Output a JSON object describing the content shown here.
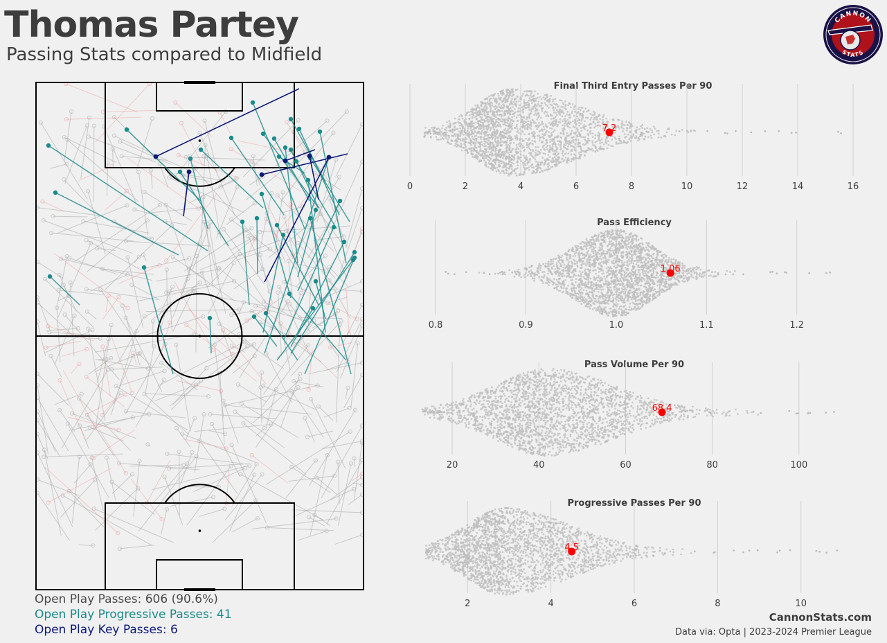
{
  "header": {
    "title": "Thomas Partey",
    "subtitle": "Passing Stats compared to Midfield"
  },
  "logo": {
    "top_text": "CANNON",
    "bottom_text": "STATS",
    "colors": {
      "ring": "#1a1147",
      "inner": "#b0121b",
      "cannon": "#e8e8e8"
    }
  },
  "legend": {
    "open_play": "Open Play Passes: 606 (90.6%)",
    "progressive": "Open Play Progressive Passes: 41",
    "key": "Open Play Key Passes: 6"
  },
  "footer": {
    "brand": "CannonStats.com",
    "credit": "Data via: Opta | 2023-2024 Premier League"
  },
  "colors": {
    "background": "#f0f0f0",
    "progressive": "#1a8a8a",
    "key": "#0d1a78",
    "incomplete": "#f08080",
    "complete": "#9a9a9a",
    "highlight": "#ff0000",
    "swarm": "#bdbdbd"
  },
  "chart_data": [
    {
      "type": "scatter",
      "title": "Final Third Entry Passes Per 90",
      "xlim": [
        0,
        16.2
      ],
      "xticks": [
        0,
        2,
        4,
        6,
        8,
        10,
        12,
        14,
        16
      ],
      "tick_labels": [
        "0",
        "2",
        "4",
        "6",
        "8",
        "10",
        "12",
        "14",
        "16"
      ],
      "distribution": {
        "center": 3.7,
        "spread_low": 1.3,
        "spread_high": 2.3,
        "min": 0.5,
        "max": 15.8
      },
      "highlight": {
        "value": 7.2,
        "label": "7.2"
      }
    },
    {
      "type": "scatter",
      "title": "Pass Efficiency",
      "xlim": [
        0.78,
        1.26
      ],
      "xticks": [
        0.8,
        0.9,
        1.0,
        1.1,
        1.2
      ],
      "tick_labels": [
        "0.8",
        "0.9",
        "1.0",
        "1.1",
        "1.2"
      ],
      "distribution": {
        "center": 1.0,
        "spread_low": 0.045,
        "spread_high": 0.04,
        "min": 0.79,
        "max": 1.24
      },
      "highlight": {
        "value": 1.06,
        "label": "1.06"
      }
    },
    {
      "type": "scatter",
      "title": "Pass Volume Per 90",
      "xlim": [
        12,
        112
      ],
      "xticks": [
        20,
        40,
        60,
        80,
        100
      ],
      "tick_labels": [
        "20",
        "40",
        "60",
        "80",
        "100"
      ],
      "distribution": {
        "center": 42,
        "spread_low": 12,
        "spread_high": 15,
        "min": 13,
        "max": 110
      },
      "highlight": {
        "value": 68.4,
        "label": "68.4"
      }
    },
    {
      "type": "scatter",
      "title": "Progressive Passes Per 90",
      "xlim": [
        0.8,
        11.2
      ],
      "xticks": [
        2,
        4,
        6,
        8,
        10
      ],
      "tick_labels": [
        "2",
        "4",
        "6",
        "8",
        "10"
      ],
      "distribution": {
        "center": 2.9,
        "spread_low": 0.9,
        "spread_high": 1.5,
        "min": 1.0,
        "max": 11.0
      },
      "highlight": {
        "value": 4.5,
        "label": "4.5"
      }
    }
  ]
}
